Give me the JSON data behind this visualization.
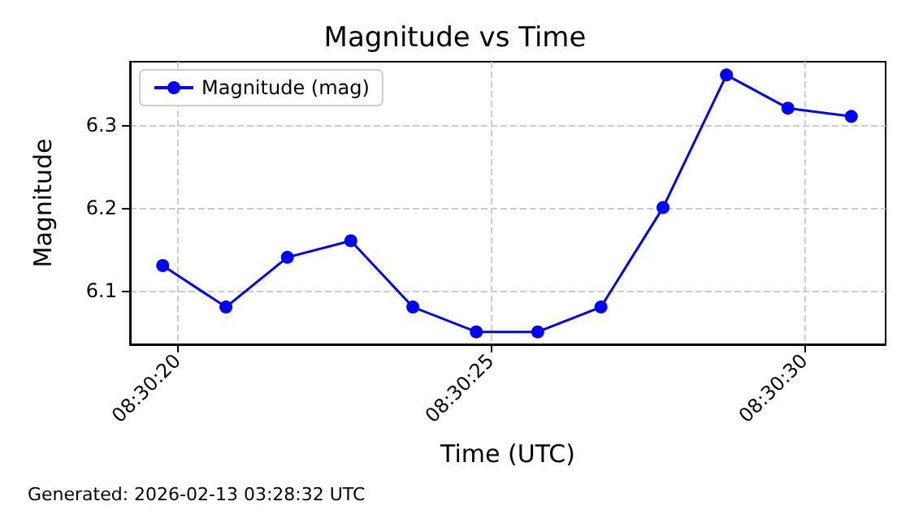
{
  "chart_data": {
    "type": "line",
    "title": "Magnitude vs Time",
    "xlabel": "Time (UTC)",
    "ylabel": "Magnitude",
    "annotations": [
      "Generated: 2026-02-13 03:28:32 UTC"
    ],
    "x": [
      8.505492,
      8.505772,
      8.506044,
      8.506325,
      8.5066,
      8.506881,
      8.507153,
      8.507433,
      8.507708,
      8.507989,
      8.508261,
      8.508542
    ],
    "series": [
      {
        "name": "Magnitude (mag)",
        "color": "#0000ff",
        "values": [
          6.13,
          6.08,
          6.14,
          6.16,
          6.08,
          6.05,
          6.05,
          6.08,
          6.2,
          6.36,
          6.32,
          6.31
        ]
      }
    ],
    "xlim": [
      8.505347,
      8.508694
    ],
    "xticks": [
      {
        "value": 8.505556,
        "label": "08:30:20"
      },
      {
        "value": 8.506944,
        "label": "08:30:25"
      },
      {
        "value": 8.508333,
        "label": "08:30:30"
      }
    ],
    "ylim": [
      6.035,
      6.376
    ],
    "yticks": [
      {
        "value": 6.1,
        "label": "6.1"
      },
      {
        "value": 6.2,
        "label": "6.2"
      },
      {
        "value": 6.3,
        "label": "6.3"
      }
    ],
    "grid": true,
    "legend": "top left",
    "marker": "circle",
    "line_style": "solid"
  }
}
